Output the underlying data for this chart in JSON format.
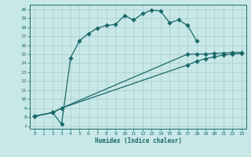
{
  "xlabel": "Humidex (Indice chaleur)",
  "background_color": "#c8e8e8",
  "grid_color": "#a8cccc",
  "line_color": "#1a6868",
  "xlim_min": -0.5,
  "xlim_max": 23.5,
  "ylim_min": 6.7,
  "ylim_max": 20.5,
  "xticks": [
    0,
    1,
    2,
    3,
    4,
    5,
    6,
    7,
    8,
    9,
    10,
    11,
    12,
    13,
    14,
    15,
    16,
    17,
    18,
    19,
    20,
    21,
    22,
    23
  ],
  "yticks": [
    7,
    8,
    9,
    10,
    11,
    12,
    13,
    14,
    15,
    16,
    17,
    18,
    19,
    20
  ],
  "curve1_x": [
    0,
    2,
    3,
    4,
    5,
    6,
    7,
    8,
    9,
    10,
    11,
    12,
    13,
    14,
    15,
    16,
    17,
    18
  ],
  "curve1_y": [
    8.1,
    8.5,
    7.2,
    14.6,
    16.5,
    17.3,
    17.9,
    18.2,
    18.3,
    19.3,
    18.8,
    19.5,
    19.9,
    19.8,
    18.5,
    18.8,
    18.2,
    16.5
  ],
  "curve2_x": [
    0,
    2,
    3,
    17,
    18,
    19,
    20,
    21,
    22,
    23
  ],
  "curve2_y": [
    8.1,
    8.5,
    9.0,
    15.0,
    15.0,
    15.0,
    15.1,
    15.1,
    15.2,
    15.2
  ],
  "curve3_x": [
    0,
    2,
    3,
    17,
    18,
    19,
    20,
    21,
    22,
    23
  ],
  "curve3_y": [
    8.1,
    8.5,
    9.0,
    13.8,
    14.2,
    14.5,
    14.7,
    14.9,
    15.0,
    15.1
  ],
  "markersize": 2.8,
  "linewidth": 0.9
}
